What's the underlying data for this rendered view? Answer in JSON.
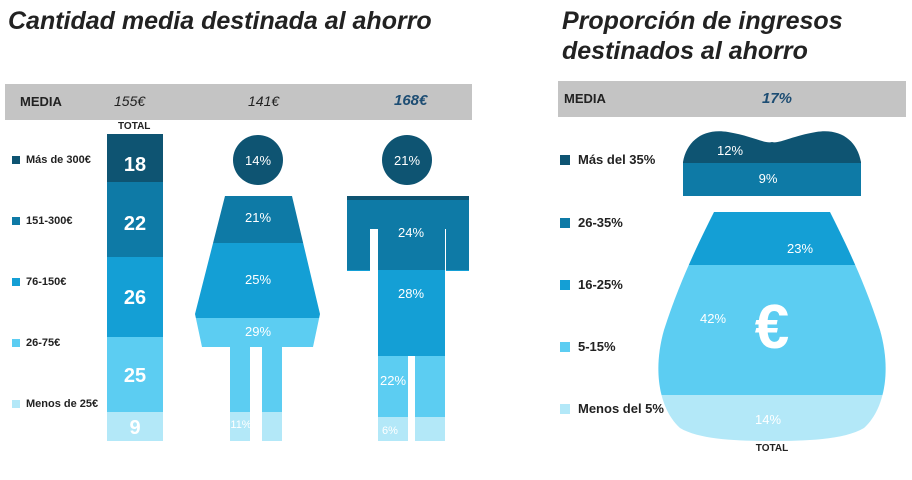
{
  "chart_data": [
    {
      "type": "bar",
      "title": "Cantidad media destinada al ahorro",
      "media_label": "MEDIA",
      "total_label": "TOTAL",
      "medias": {
        "total": "155€",
        "mujeres": "141€",
        "hombres": "168€"
      },
      "categories": [
        "Más de 300€",
        "151-300€",
        "76-150€",
        "26-75€",
        "Menos de 25€"
      ],
      "series": [
        {
          "name": "Total",
          "values": [
            18,
            22,
            26,
            25,
            9
          ],
          "labels": [
            "18",
            "22",
            "26",
            "25",
            "9"
          ]
        },
        {
          "name": "Mujeres",
          "values": [
            14,
            21,
            25,
            29,
            11
          ],
          "labels": [
            "14%",
            "21%",
            "25%",
            "29%",
            "11%"
          ]
        },
        {
          "name": "Hombres",
          "values": [
            21,
            24,
            28,
            22,
            6
          ],
          "labels": [
            "21%",
            "24%",
            "28%",
            "22%",
            "6%"
          ]
        }
      ]
    },
    {
      "type": "bar",
      "title": "Proporción de ingresos destinados al ahorro",
      "title_lines": [
        "Proporción de ingresos",
        "destinados al ahorro"
      ],
      "media_label": "MEDIA",
      "media_value": "17%",
      "total_label": "TOTAL",
      "symbol": "€",
      "categories": [
        "Más del 35%",
        "26-35%",
        "16-25%",
        "5-15%",
        "Menos del 5%"
      ],
      "values": [
        12,
        9,
        23,
        42,
        14
      ],
      "labels": [
        "12%",
        "9%",
        "23%",
        "42%",
        "14%"
      ]
    }
  ],
  "colors": {
    "c1": "#0e5472",
    "c2": "#0e7aa6",
    "c3": "#149fd5",
    "c4": "#5ccdf2",
    "c5": "#b3e8f8",
    "media_bar": "#c4c4c4",
    "accent_text": "#1d4d73"
  }
}
